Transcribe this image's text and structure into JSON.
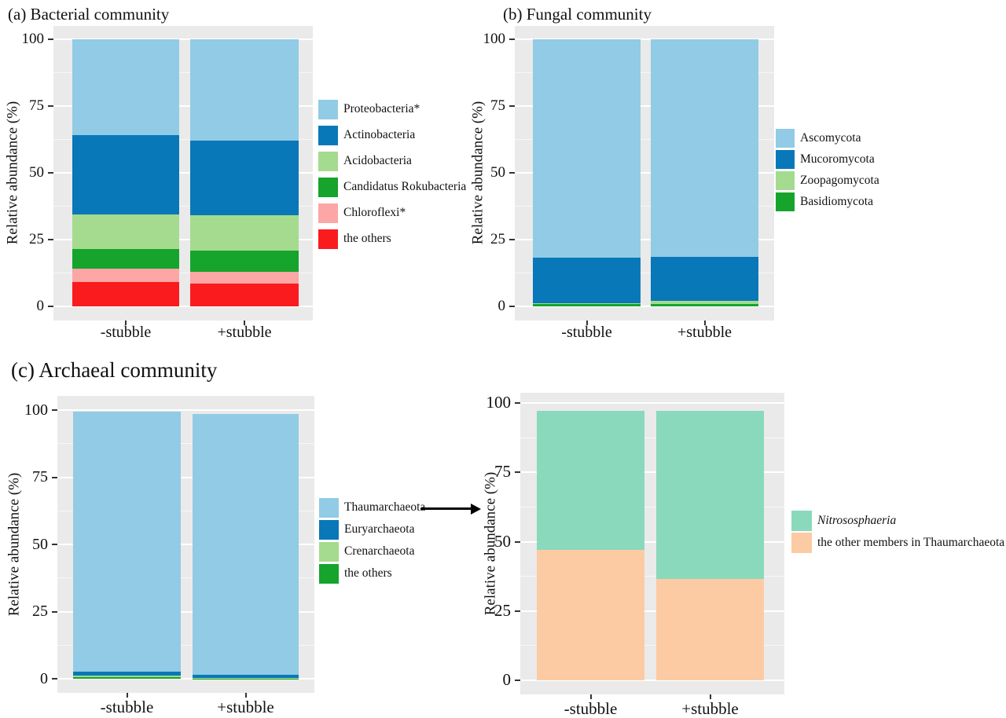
{
  "chart_data": [
    {
      "type": "bar",
      "stacked": true,
      "title": "(a) Bacterial community",
      "ylabel": "Relative abundance (%)",
      "ylim": [
        0,
        100
      ],
      "yticks": [
        100,
        75,
        50,
        25,
        0
      ],
      "grid": true,
      "legend_position": "right",
      "categories": [
        "-stubble",
        "+stubble"
      ],
      "series": [
        {
          "name": "Proteobacteria*",
          "color": "#92CBE5",
          "values": [
            36.0,
            38.0
          ]
        },
        {
          "name": "Actinobacteria",
          "color": "#0878B8",
          "values": [
            29.5,
            28.0
          ]
        },
        {
          "name": "Acidobacteria",
          "color": "#A4DB8E",
          "values": [
            13.0,
            13.0
          ]
        },
        {
          "name": "Candidatus Rokubacteria",
          "color": "#16A42C",
          "values": [
            7.5,
            8.0
          ]
        },
        {
          "name": "Chloroflexi*",
          "color": "#FCA6A6",
          "values": [
            4.8,
            4.4
          ]
        },
        {
          "name": "the others",
          "color": "#FA1B1E",
          "values": [
            9.2,
            8.6
          ]
        }
      ]
    },
    {
      "type": "bar",
      "stacked": true,
      "title": "(b) Fungal community",
      "ylabel": "Relative abundance (%)",
      "ylim": [
        0,
        100
      ],
      "yticks": [
        100,
        75,
        50,
        25,
        0
      ],
      "grid": true,
      "legend_position": "right",
      "categories": [
        "-stubble",
        "+stubble"
      ],
      "series": [
        {
          "name": "Ascomycota",
          "color": "#92CBE5",
          "values": [
            81.7,
            81.6
          ]
        },
        {
          "name": "Mucoromycota",
          "color": "#0878B8",
          "values": [
            17.0,
            16.4
          ]
        },
        {
          "name": "Zoopagomycota",
          "color": "#A4DB8E",
          "values": [
            0.3,
            1.0
          ]
        },
        {
          "name": "Basidiomycota",
          "color": "#16A42C",
          "values": [
            1.0,
            1.0
          ]
        }
      ]
    },
    {
      "type": "bar",
      "stacked": true,
      "title": "(c) Archaeal community",
      "ylabel": "Relative abundance (%)",
      "ylim": [
        0,
        100
      ],
      "yticks": [
        100,
        75,
        50,
        25,
        0
      ],
      "grid": true,
      "legend_position": "right",
      "categories": [
        "-stubble",
        "+stubble"
      ],
      "series": [
        {
          "name": "Thaumarchaeota",
          "color": "#92CBE5",
          "values": [
            96.9,
            97.0
          ]
        },
        {
          "name": "Euryarchaeota",
          "color": "#0878B8",
          "values": [
            1.4,
            1.2
          ]
        },
        {
          "name": "Crenarchaeota",
          "color": "#A4DB8E",
          "values": [
            0.6,
            0.3
          ]
        },
        {
          "name": "the others",
          "color": "#16A42C",
          "values": [
            0.6,
            0.1
          ]
        }
      ]
    },
    {
      "type": "bar",
      "stacked": true,
      "title": "",
      "ylabel": "Relative abundance (%)",
      "ylim": [
        0,
        100
      ],
      "yticks": [
        100,
        75,
        50,
        25,
        0
      ],
      "grid": true,
      "legend_position": "right",
      "categories": [
        "-stubble",
        "+stubble"
      ],
      "series": [
        {
          "name": "Nitrososphaeria",
          "color": "#8AD9BC",
          "italic": true,
          "values": [
            50.3,
            60.6
          ]
        },
        {
          "name": "the other members in Thaumarchaeota",
          "color": "#FCCBA3",
          "values": [
            46.9,
            36.6
          ]
        }
      ]
    }
  ]
}
